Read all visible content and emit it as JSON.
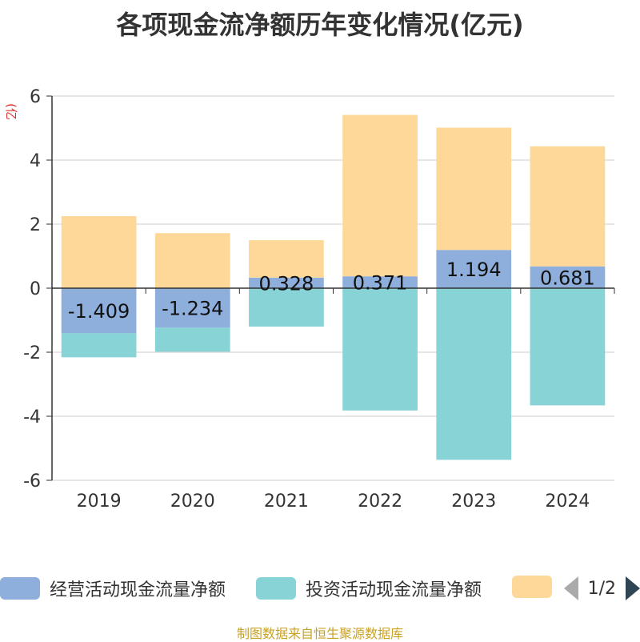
{
  "title": "各项现金流净额历年变化情况(亿元)",
  "unit_label": "(亿元)",
  "source": "制图数据来自恒生聚源数据库",
  "legend": {
    "items": [
      {
        "label": "经营活动现金流量净额",
        "color": "#8eaedb"
      },
      {
        "label": "投资活动现金流量净额",
        "color": "#87d3d6"
      },
      {
        "label": "",
        "color": "#fdd899"
      }
    ],
    "page_text": "1/2"
  },
  "chart_data": {
    "type": "bar",
    "stacked": true,
    "categories": [
      "2019",
      "2020",
      "2021",
      "2022",
      "2023",
      "2024"
    ],
    "series": [
      {
        "name": "经营活动现金流量净额",
        "color": "#8eaedb",
        "values": [
          -1.409,
          -1.234,
          0.328,
          0.371,
          1.194,
          0.681
        ],
        "labels": [
          "-1.409",
          "-1.234",
          "0.328",
          "0.371",
          "1.194",
          "0.681"
        ]
      },
      {
        "name": "投资活动现金流量净额",
        "color": "#87d3d6",
        "values": [
          -0.75,
          -0.75,
          -1.2,
          -3.82,
          -5.36,
          -3.66
        ]
      },
      {
        "name": "",
        "color": "#fdd899",
        "values": [
          2.25,
          1.72,
          1.17,
          5.04,
          3.82,
          3.75
        ]
      }
    ],
    "ylim": [
      -6,
      6
    ],
    "yticks": [
      6,
      4,
      2,
      0,
      -2,
      -4,
      -6
    ],
    "grid": true,
    "legend_position": "bottom"
  }
}
